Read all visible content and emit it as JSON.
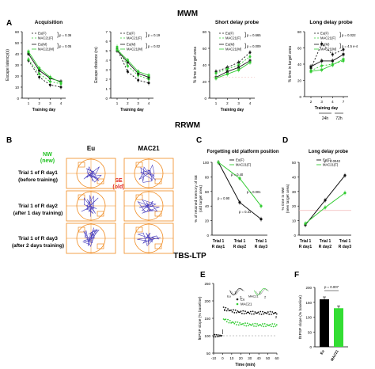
{
  "section_titles": {
    "mwm": "MWM",
    "rrwm": "RRWM",
    "tbs": "TBS-LTP"
  },
  "panel_letters": {
    "a": "A",
    "b": "B",
    "c": "C",
    "d": "D",
    "e": "E",
    "f": "F"
  },
  "colors": {
    "eu": "#111111",
    "mac21": "#33cc33",
    "orange": "#f08a1e",
    "nw": "#1fc21f",
    "se": "#e0231c",
    "ref": "#f2b8b8",
    "bar_eu": "#000000",
    "bar_mac": "#33dd33"
  },
  "panel_b": {
    "col_eu": "Eu",
    "col_mac": "MAC21",
    "nw_label": "NW",
    "nw_sub": "(new)",
    "se_label": "SE",
    "se_sub": "(old)",
    "rows": [
      {
        "line1": "Trial 1 of R day1",
        "line2": "(before training)"
      },
      {
        "line1": "Trial 1 of R day2",
        "line2": "(after 1 day training)"
      },
      {
        "line1": "Trial 1 of R day3",
        "line2": "(after 2 days training)"
      }
    ]
  },
  "chart_data": [
    {
      "id": "A1",
      "type": "line",
      "title": "Acquisition",
      "xlabel": "Training day",
      "ylabel": "Escape latency(s)",
      "x": [
        1,
        2,
        3,
        4
      ],
      "ylim": [
        0,
        60
      ],
      "yticks": [
        0,
        10,
        20,
        30,
        40,
        50,
        60
      ],
      "series": [
        {
          "name": "Eu(F)",
          "values": [
            34,
            19,
            12,
            10
          ],
          "style": "dashed-black-circle"
        },
        {
          "name": "MAC21(F)",
          "values": [
            35,
            22,
            15,
            13
          ],
          "style": "dashed-green-circle"
        },
        {
          "name": "Eu(M)",
          "values": [
            40,
            25,
            18,
            15
          ],
          "style": "solid-black-square"
        },
        {
          "name": "MAC21(M)",
          "values": [
            42,
            27,
            19,
            14
          ],
          "style": "solid-green-square"
        }
      ],
      "stats": [
        "p = 0.36",
        "p = 0.05"
      ]
    },
    {
      "id": "A2",
      "type": "line",
      "xlabel": "Training day",
      "ylabel": "Escape distance (m)",
      "x": [
        1,
        2,
        3,
        4
      ],
      "ylim": [
        0,
        7
      ],
      "yticks": [
        0,
        1,
        2,
        3,
        4,
        5,
        6,
        7
      ],
      "series": [
        {
          "name": "Eu(F)",
          "values": [
            5.2,
            2.8,
            1.9,
            1.6
          ],
          "style": "dashed-black-circle"
        },
        {
          "name": "MAC21(F)",
          "values": [
            5.4,
            3.4,
            2.4,
            2.0
          ],
          "style": "dashed-green-circle"
        },
        {
          "name": "Eu(M)",
          "values": [
            5.0,
            3.8,
            2.6,
            2.2
          ],
          "style": "solid-black-square"
        },
        {
          "name": "MAC21(M)",
          "values": [
            5.1,
            4.0,
            2.8,
            2.4
          ],
          "style": "solid-green-square"
        }
      ],
      "stats": [
        "p = 0.19",
        "p = 0.02"
      ]
    },
    {
      "id": "A3",
      "type": "line",
      "title": "Short delay probe",
      "xlabel": "Training day",
      "ylabel": "% time in target area",
      "x": [
        1,
        2,
        3,
        4
      ],
      "ylim": [
        0,
        80
      ],
      "yticks": [
        0,
        20,
        40,
        60,
        80
      ],
      "series": [
        {
          "name": "Eu(F)",
          "values": [
            32,
            37,
            43,
            55
          ],
          "style": "dashed-black-circle"
        },
        {
          "name": "MAC21(F)",
          "values": [
            30,
            35,
            40,
            50
          ],
          "style": "dashed-green-circle"
        },
        {
          "name": "Eu(M)",
          "values": [
            25,
            32,
            37,
            45
          ],
          "style": "solid-black-square"
        },
        {
          "name": "MAC21(M)",
          "values": [
            24,
            29,
            34,
            43
          ],
          "style": "solid-green-square"
        }
      ],
      "stats": [
        "p = 0.665",
        "p = 0.009"
      ]
    },
    {
      "id": "A4",
      "type": "line",
      "title": "Long delay probe",
      "xlabel": "Training day",
      "ylabel": "% time in target area",
      "x": [
        2,
        3,
        4,
        7
      ],
      "xticks": [
        "2",
        "3",
        "4",
        "7"
      ],
      "ylim": [
        0,
        80
      ],
      "yticks": [
        0,
        20,
        40,
        60,
        80
      ],
      "series": [
        {
          "name": "Eu(F)",
          "values": [
            35,
            65,
            52,
            58
          ],
          "style": "dashed-black-circle"
        },
        {
          "name": "MAC21(F)",
          "values": [
            32,
            38,
            40,
            44
          ],
          "style": "dashed-green-circle"
        },
        {
          "name": "Eu(M)",
          "values": [
            37,
            44,
            44,
            52
          ],
          "style": "solid-black-square"
        },
        {
          "name": "MAC21(M)",
          "values": [
            31,
            33,
            39,
            46
          ],
          "style": "solid-green-square"
        }
      ],
      "stats": [
        "p = 0.022",
        "p = 4.5 e-4"
      ],
      "brackets": [
        "24h",
        "72h"
      ]
    },
    {
      "id": "C",
      "type": "line",
      "title": "Forgetting old platform position",
      "ylabel": "% of retained memory of SE (old target area)",
      "categories": [
        "Trial 1 R day1",
        "Trial 1 R day2",
        "Trial 1 R day3"
      ],
      "ylim": [
        0,
        100
      ],
      "yticks": [
        0,
        20,
        40,
        60,
        80,
        100
      ],
      "series": [
        {
          "name": "Eu(F)",
          "values": [
            100,
            45,
            22
          ]
        },
        {
          "name": "MAC21(F)",
          "values": [
            100,
            78,
            40
          ]
        }
      ],
      "stats": [
        "p = 0.40",
        "p = 0.001",
        "p = 0.90",
        "p = 0.31"
      ]
    },
    {
      "id": "D",
      "type": "line",
      "title": "Long delay probe",
      "ylabel": "% time in NW (new target area)",
      "categories": [
        "Trial 1 R day1",
        "Trial 1 R day2",
        "Trial 1 R day3"
      ],
      "ylim": [
        0,
        50
      ],
      "yticks": [
        0,
        10,
        20,
        30,
        40,
        50
      ],
      "series": [
        {
          "name": "Eu(F)",
          "values": [
            7,
            24,
            41
          ]
        },
        {
          "name": "MAC21(F)",
          "values": [
            8,
            19,
            29
          ]
        }
      ],
      "reference_line": 17,
      "stats": [
        "p = 0.0040"
      ]
    },
    {
      "id": "E",
      "type": "scatter",
      "xlabel": "Time (min)",
      "ylabel": "fEPSP slope (% baseline)",
      "xlim": [
        -10,
        60
      ],
      "xticks": [
        -10,
        0,
        10,
        20,
        30,
        40,
        50,
        60
      ],
      "ylim": [
        50,
        250
      ],
      "yticks": [
        50,
        100,
        150,
        200,
        250
      ],
      "series": [
        {
          "name": "Eu",
          "start": 180,
          "end": 165
        },
        {
          "name": "MAC21",
          "start": 150,
          "end": 130
        }
      ],
      "baseline": 100,
      "trace_labels": [
        "1",
        "2",
        "1",
        "2"
      ],
      "marks": [
        "1",
        "2"
      ]
    },
    {
      "id": "F",
      "type": "bar",
      "ylabel": "fEPSP slope (% baseline)",
      "categories": [
        "Eu",
        "MAC21"
      ],
      "values": [
        160,
        130
      ],
      "ylim": [
        0,
        200
      ],
      "yticks": [
        0,
        50,
        100,
        150,
        200
      ],
      "stats": [
        "p = 0.007"
      ]
    }
  ]
}
